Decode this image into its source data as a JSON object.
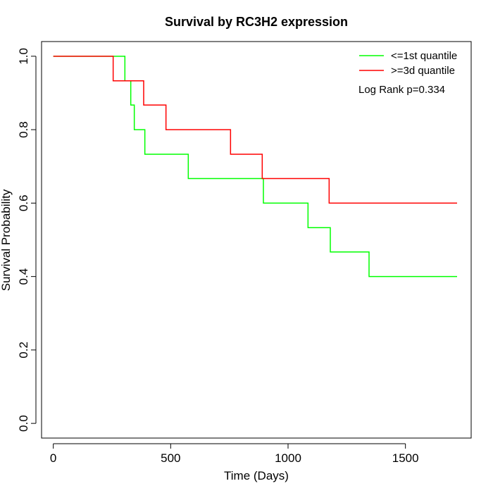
{
  "chart_data": {
    "type": "line",
    "title": "Survival by RC3H2 expression",
    "xlabel": "Time (Days)",
    "ylabel": "Survival Probability",
    "xlim": [
      -50,
      1780
    ],
    "ylim": [
      -0.04,
      1.04
    ],
    "x_ticks": [
      0,
      500,
      1000,
      1500
    ],
    "y_ticks": [
      0.0,
      0.2,
      0.4,
      0.6,
      0.8,
      1.0
    ],
    "x_tick_labels": [
      "0",
      "500",
      "1000",
      "1500"
    ],
    "y_tick_labels": [
      "0.0",
      "0.2",
      "0.4",
      "0.6",
      "0.8",
      "1.0"
    ],
    "grid": false,
    "legend_position": "top-right",
    "annotation": "Log Rank p=0.334",
    "series": [
      {
        "name": "<=1st quantile",
        "color": "#00ff00",
        "step": true,
        "x": [
          0,
          305,
          330,
          345,
          390,
          575,
          895,
          1085,
          1180,
          1345,
          1720
        ],
        "y": [
          1.0,
          0.933,
          0.867,
          0.8,
          0.733,
          0.667,
          0.6,
          0.533,
          0.467,
          0.4,
          0.4
        ]
      },
      {
        "name": ">=3d quantile",
        "color": "#ff0000",
        "step": true,
        "x": [
          0,
          255,
          385,
          480,
          755,
          890,
          1175,
          1720
        ],
        "y": [
          1.0,
          0.933,
          0.867,
          0.8,
          0.733,
          0.667,
          0.6,
          0.6
        ]
      }
    ]
  }
}
